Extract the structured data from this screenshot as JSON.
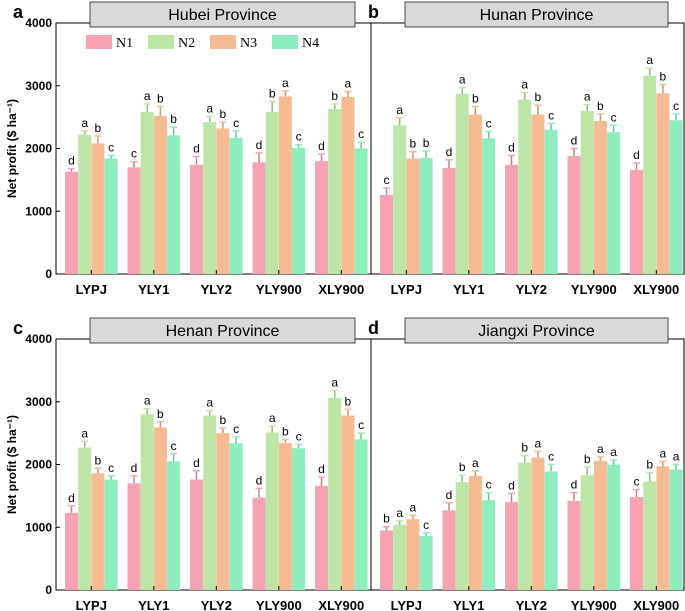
{
  "chart_data": [
    {
      "type": "bar",
      "panel_label": "a",
      "title": "Hubei Province",
      "ylabel": "Net profit ($ ha⁻¹)",
      "ylim": [
        0,
        4000
      ],
      "yticks": [
        0,
        1000,
        2000,
        3000,
        4000
      ],
      "categories": [
        "LYPJ",
        "YLY1",
        "YLY2",
        "YLY900",
        "XLY900"
      ],
      "series": [
        {
          "name": "N1",
          "values": [
            1630,
            1700,
            1740,
            1780,
            1800
          ],
          "errors": [
            50,
            90,
            130,
            150,
            110
          ],
          "letters": [
            "d",
            "c",
            "d",
            "d",
            "d"
          ]
        },
        {
          "name": "N2",
          "values": [
            2220,
            2580,
            2420,
            2580,
            2630
          ],
          "errors": [
            60,
            130,
            90,
            170,
            80
          ],
          "letters": [
            "a",
            "a",
            "a",
            "b",
            "b"
          ]
        },
        {
          "name": "N3",
          "values": [
            2080,
            2520,
            2320,
            2830,
            2820
          ],
          "errors": [
            120,
            150,
            100,
            90,
            90
          ],
          "letters": [
            "b",
            "b",
            "b",
            "a",
            "a"
          ]
        },
        {
          "name": "N4",
          "values": [
            1840,
            2210,
            2170,
            2010,
            2000
          ],
          "errors": [
            50,
            130,
            110,
            50,
            100
          ],
          "letters": [
            "c",
            "b",
            "c",
            "c",
            "c"
          ]
        }
      ],
      "legend": [
        "N1",
        "N2",
        "N3",
        "N4"
      ]
    },
    {
      "type": "bar",
      "panel_label": "b",
      "title": "Hunan Province",
      "ylim": [
        0,
        4000
      ],
      "categories": [
        "LYPJ",
        "YLY1",
        "YLY2",
        "YLY900",
        "XLY900"
      ],
      "series": [
        {
          "name": "N1",
          "values": [
            1260,
            1690,
            1740,
            1880,
            1660
          ],
          "errors": [
            110,
            130,
            150,
            120,
            110
          ],
          "letters": [
            "c",
            "d",
            "d",
            "d",
            "d"
          ]
        },
        {
          "name": "N2",
          "values": [
            2370,
            2870,
            2780,
            2600,
            3160
          ],
          "errors": [
            120,
            100,
            110,
            100,
            120
          ],
          "letters": [
            "a",
            "a",
            "a",
            "a",
            "a"
          ]
        },
        {
          "name": "N3",
          "values": [
            1840,
            2540,
            2540,
            2440,
            2880
          ],
          "errors": [
            110,
            130,
            150,
            110,
            140
          ],
          "letters": [
            "b",
            "b",
            "b",
            "b",
            "b"
          ]
        },
        {
          "name": "N4",
          "values": [
            1850,
            2160,
            2300,
            2260,
            2450
          ],
          "errors": [
            110,
            110,
            100,
            110,
            100
          ],
          "letters": [
            "b",
            "c",
            "c",
            "c",
            "c"
          ]
        }
      ]
    },
    {
      "type": "bar",
      "panel_label": "c",
      "title": "Henan Province",
      "ylabel": "Net profit ($ ha⁻¹)",
      "ylim": [
        0,
        4000
      ],
      "yticks": [
        0,
        1000,
        2000,
        3000,
        4000
      ],
      "categories": [
        "LYPJ",
        "YLY1",
        "YLY2",
        "YLY900",
        "XLY900"
      ],
      "series": [
        {
          "name": "N1",
          "values": [
            1230,
            1700,
            1760,
            1470,
            1660
          ],
          "errors": [
            110,
            120,
            140,
            150,
            140
          ],
          "letters": [
            "d",
            "d",
            "d",
            "d",
            "d"
          ]
        },
        {
          "name": "N2",
          "values": [
            2270,
            2800,
            2780,
            2510,
            3060
          ],
          "errors": [
            100,
            90,
            80,
            100,
            120
          ],
          "letters": [
            "a",
            "a",
            "a",
            "a",
            "a"
          ]
        },
        {
          "name": "N3",
          "values": [
            1860,
            2590,
            2500,
            2340,
            2780
          ],
          "errors": [
            80,
            90,
            80,
            60,
            100
          ],
          "letters": [
            "b",
            "b",
            "b",
            "b",
            "b"
          ]
        },
        {
          "name": "N4",
          "values": [
            1760,
            2050,
            2340,
            2260,
            2400
          ],
          "errors": [
            60,
            120,
            100,
            60,
            100
          ],
          "letters": [
            "c",
            "c",
            "c",
            "c",
            "c"
          ]
        }
      ]
    },
    {
      "type": "bar",
      "panel_label": "d",
      "title": "Jiangxi Province",
      "ylim": [
        0,
        4000
      ],
      "categories": [
        "LYPJ",
        "YLY1",
        "YLY2",
        "YLY900",
        "XLY900"
      ],
      "series": [
        {
          "name": "N1",
          "values": [
            950,
            1270,
            1400,
            1420,
            1480
          ],
          "errors": [
            60,
            120,
            140,
            130,
            120
          ],
          "letters": [
            "b",
            "d",
            "d",
            "d",
            "c"
          ]
        },
        {
          "name": "N2",
          "values": [
            1040,
            1720,
            2030,
            1830,
            1730
          ],
          "errors": [
            60,
            110,
            110,
            130,
            140
          ],
          "letters": [
            "a",
            "b",
            "b",
            "b",
            "b"
          ]
        },
        {
          "name": "N3",
          "values": [
            1130,
            1820,
            2110,
            2060,
            1970
          ],
          "errors": [
            60,
            80,
            100,
            60,
            80
          ],
          "letters": [
            "a",
            "a",
            "a",
            "a",
            "a"
          ]
        },
        {
          "name": "N4",
          "values": [
            860,
            1430,
            1890,
            2000,
            1920
          ],
          "errors": [
            50,
            120,
            110,
            70,
            80
          ],
          "letters": [
            "c",
            "c",
            "c",
            "a",
            "a"
          ]
        }
      ]
    }
  ],
  "colors": {
    "N1": "#f5a3b3",
    "N2": "#bde6a6",
    "N3": "#f6bb93",
    "N4": "#8eedbd",
    "title_box": "#d9d9d9"
  }
}
